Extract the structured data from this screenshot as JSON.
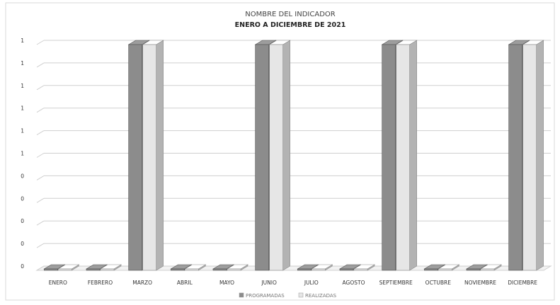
{
  "chart_data": {
    "type": "bar",
    "title": "NOMBRE DEL INDICADOR",
    "subtitle": "ENERO A DICIEMBRE DE 2021",
    "categories": [
      "ENERO",
      "FEBRERO",
      "MARZO",
      "ABRIL",
      "MAYO",
      "JUNIO",
      "JULIO",
      "AGOSTO",
      "SEPTIEMBRE",
      "OCTUBRE",
      "NOVIEMBRE",
      "DICIEMBRE"
    ],
    "series": [
      {
        "name": "PROGRAMADAS",
        "values": [
          0,
          0,
          1,
          0,
          0,
          1,
          0,
          0,
          1,
          0,
          0,
          1
        ],
        "color": "#8c8c8c"
      },
      {
        "name": "REALIZADAS",
        "values": [
          0,
          0,
          1,
          0,
          0,
          1,
          0,
          0,
          1,
          0,
          0,
          1
        ],
        "color": "#e6e6e6"
      }
    ],
    "ylim": [
      0,
      1
    ],
    "yticks": [
      0,
      0.1,
      0.2,
      0.3,
      0.4,
      0.5,
      0.6,
      0.7,
      0.8,
      0.9,
      1
    ],
    "ytick_labels": [
      "0",
      "0",
      "0",
      "0",
      "0",
      "1",
      "1",
      "1",
      "1",
      "1",
      "1"
    ],
    "grid": true,
    "legend_position": "bottom"
  }
}
